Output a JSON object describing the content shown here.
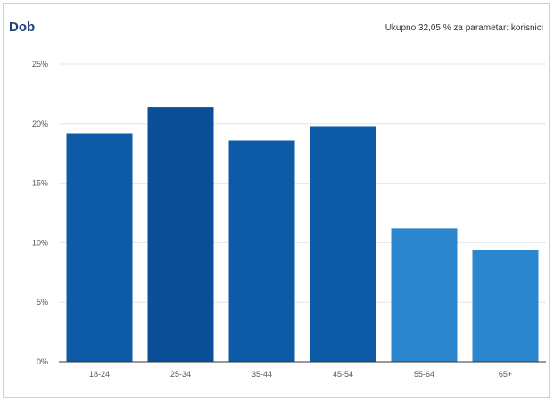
{
  "chart_data": {
    "type": "bar",
    "title": "Dob",
    "subtitle": "Ukupno 32,05 % za parametar: korisnici",
    "categories": [
      "18-24",
      "25-34",
      "35-44",
      "45-54",
      "55-64",
      "65+"
    ],
    "values": [
      19.2,
      21.4,
      18.6,
      19.8,
      11.2,
      9.4
    ],
    "ylim": [
      0,
      25
    ],
    "yticks": [
      "0%",
      "5%",
      "10%",
      "15%",
      "20%",
      "25%"
    ],
    "ytick_values": [
      0,
      5,
      10,
      15,
      20,
      25
    ],
    "grid": true,
    "colors": [
      "#0d5aa7",
      "#0b4f99",
      "#0d5aa7",
      "#0d5aa7",
      "#2a87cf",
      "#2a87cf"
    ]
  }
}
